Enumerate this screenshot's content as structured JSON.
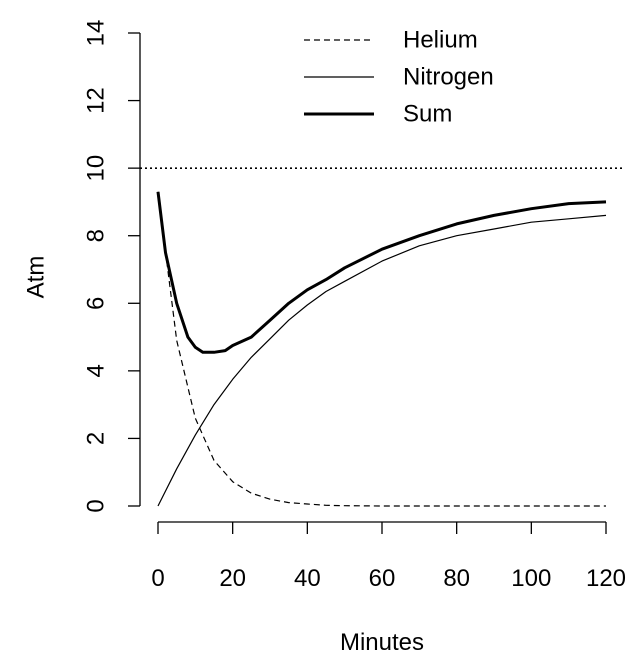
{
  "chart_data": {
    "type": "line",
    "title": "",
    "xlabel": "Minutes",
    "ylabel": "Atm",
    "xlim": [
      0,
      120
    ],
    "ylim": [
      0,
      14
    ],
    "x_ticks": [
      0,
      20,
      40,
      60,
      80,
      100,
      120
    ],
    "y_ticks": [
      0,
      2,
      4,
      6,
      8,
      10,
      12,
      14
    ],
    "grid": false,
    "legend_position": "top-right",
    "reference_line": {
      "y": 10,
      "style": "dotted"
    },
    "series": [
      {
        "name": "Helium",
        "style": "dashed",
        "color": "#000000",
        "x": [
          0,
          5,
          10,
          15,
          20,
          25,
          30,
          35,
          40,
          45,
          50,
          60,
          70,
          80,
          90,
          100,
          110,
          120
        ],
        "y": [
          9.3,
          4.9,
          2.6,
          1.35,
          0.72,
          0.38,
          0.2,
          0.1,
          0.06,
          0.02,
          0.01,
          0.0,
          0.0,
          0.0,
          0.0,
          0.0,
          0.0,
          0.0
        ]
      },
      {
        "name": "Nitrogen",
        "style": "solid",
        "color": "#000000",
        "x": [
          0,
          5,
          10,
          15,
          20,
          25,
          30,
          35,
          40,
          45,
          50,
          60,
          70,
          80,
          90,
          100,
          110,
          120
        ],
        "y": [
          0.0,
          1.1,
          2.1,
          3.0,
          3.75,
          4.4,
          4.95,
          5.5,
          5.95,
          6.35,
          6.65,
          7.25,
          7.7,
          8.0,
          8.2,
          8.4,
          8.5,
          8.6
        ]
      },
      {
        "name": "Sum",
        "style": "thick",
        "color": "#000000",
        "x": [
          0,
          2,
          5,
          8,
          10,
          12,
          15,
          18,
          20,
          25,
          30,
          35,
          40,
          45,
          50,
          60,
          70,
          80,
          90,
          100,
          110,
          120
        ],
        "y": [
          9.3,
          7.5,
          6.0,
          5.0,
          4.7,
          4.55,
          4.55,
          4.6,
          4.75,
          5.0,
          5.5,
          6.0,
          6.4,
          6.7,
          7.05,
          7.6,
          8.0,
          8.35,
          8.6,
          8.8,
          8.95,
          9.0
        ]
      }
    ]
  }
}
